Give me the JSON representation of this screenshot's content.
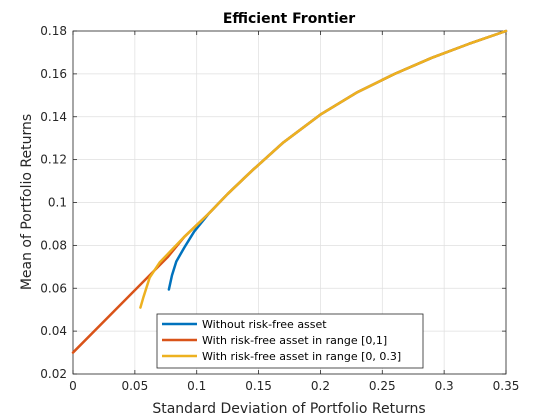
{
  "chart_data": {
    "type": "line",
    "title": "Efficient Frontier",
    "xlabel": "Standard Deviation of Portfolio Returns",
    "ylabel": "Mean of Portfolio Returns",
    "xlim": [
      0,
      0.35
    ],
    "ylim": [
      0.02,
      0.18
    ],
    "xticks": [
      "0",
      "0.05",
      "0.1",
      "0.15",
      "0.2",
      "0.25",
      "0.3",
      "0.35"
    ],
    "yticks": [
      "0.02",
      "0.04",
      "0.06",
      "0.08",
      "0.1",
      "0.12",
      "0.14",
      "0.16",
      "0.18"
    ],
    "grid": true,
    "legend_position": "bottom-center",
    "series": [
      {
        "name": "Without risk-free asset",
        "color": "#0072bd",
        "x": [
          0.0775,
          0.08,
          0.0835,
          0.09,
          0.098,
          0.11,
          0.125,
          0.145,
          0.17,
          0.2,
          0.23,
          0.26,
          0.29,
          0.32,
          0.35
        ],
        "y": [
          0.0594,
          0.066,
          0.0725,
          0.079,
          0.0865,
          0.095,
          0.104,
          0.115,
          0.128,
          0.141,
          0.1515,
          0.16,
          0.1675,
          0.174,
          0.18
        ]
      },
      {
        "name": "With risk-free asset in range [0,1]",
        "color": "#d95319",
        "x": [
          0,
          0.0765,
          0.09,
          0.11,
          0.125,
          0.145,
          0.17,
          0.2,
          0.23,
          0.26,
          0.29,
          0.32,
          0.35
        ],
        "y": [
          0.03,
          0.0745,
          0.084,
          0.095,
          0.104,
          0.115,
          0.128,
          0.141,
          0.1515,
          0.16,
          0.1675,
          0.174,
          0.18
        ]
      },
      {
        "name": "With risk-free asset in range [0, 0.3]",
        "color": "#edb120",
        "x": [
          0.0545,
          0.057,
          0.062,
          0.07,
          0.08,
          0.09,
          0.11,
          0.125,
          0.145,
          0.17,
          0.2,
          0.23,
          0.26,
          0.29,
          0.32,
          0.35
        ],
        "y": [
          0.051,
          0.056,
          0.065,
          0.072,
          0.078,
          0.084,
          0.095,
          0.104,
          0.115,
          0.128,
          0.141,
          0.1515,
          0.16,
          0.1675,
          0.174,
          0.18
        ]
      }
    ]
  }
}
